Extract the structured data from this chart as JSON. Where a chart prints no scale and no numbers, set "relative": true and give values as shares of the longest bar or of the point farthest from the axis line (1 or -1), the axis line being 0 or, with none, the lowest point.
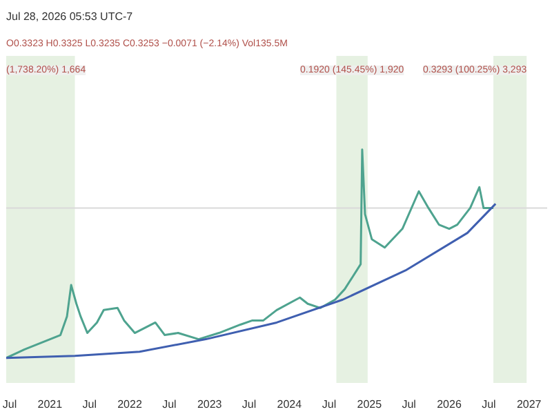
{
  "chart_data": {
    "type": "line",
    "relative": true,
    "title": "Jul 28, 2026 05:53 UTC-7",
    "subtitle": "O0.3323 H0.3325 L0.3235 C0.3253 −0.0071 (−2.14%) Vol135.5M",
    "x": [
      "2020-06-15",
      "2020-09-05",
      "2021-02-18",
      "2021-03-20",
      "2021-04-08",
      "2021-05-02",
      "2021-05-21",
      "2021-06-21",
      "2021-08-04",
      "2021-09-04",
      "2021-11-06",
      "2021-12-06",
      "2022-01-24",
      "2022-04-28",
      "2022-06-10",
      "2022-08-10",
      "2022-11-12",
      "2023-02-13",
      "2023-05-22",
      "2023-07-16",
      "2023-09-04",
      "2023-11-04",
      "2024-02-18",
      "2024-03-25",
      "2024-05-22",
      "2024-07-28",
      "2024-09-10",
      "2024-11-22",
      "2024-11-29",
      "2024-12-12",
      "2025-01-12",
      "2025-03-12",
      "2025-06-01",
      "2025-08-15",
      "2025-09-28",
      "2025-11-15",
      "2026-01-01",
      "2026-02-07",
      "2026-04-07",
      "2026-05-19",
      "2026-06-07",
      "2026-07-22"
    ],
    "series": [
      {
        "color": "#4ea38f",
        "values": [
          0,
          0.04,
          0.11,
          0.2,
          0.35,
          0.26,
          0.2,
          0.12,
          0.17,
          0.23,
          0.24,
          0.18,
          0.12,
          0.17,
          0.11,
          0.12,
          0.09,
          0.12,
          0.16,
          0.18,
          0.18,
          0.23,
          0.29,
          0.26,
          0.24,
          0.28,
          0.33,
          0.45,
          1,
          0.69,
          0.57,
          0.53,
          0.62,
          0.8,
          0.72,
          0.64,
          0.62,
          0.64,
          0.72,
          0.82,
          0.72,
          0.72
        ]
      },
      {
        "type": "line",
        "color": "#3f5fb0",
        "x": [
          "2020-06-15",
          "2021-04-25",
          "2022-02-15",
          "2022-12-15",
          "2023-11-04",
          "2024-09-01",
          "2025-06-15",
          "2026-03-25",
          "2026-08-01"
        ],
        "values": [
          0,
          0.01,
          0.03,
          0.09,
          0.17,
          0.28,
          0.42,
          0.6,
          0.74
        ]
      }
    ],
    "xlim": [
      "2020-06-15",
      "2027-03-25"
    ],
    "xticks": [
      {
        "value": "2020-07-01",
        "label": "Jul"
      },
      {
        "value": "2021-01-01",
        "label": "2021"
      },
      {
        "value": "2021-07-01",
        "label": "Jul"
      },
      {
        "value": "2022-01-01",
        "label": "2022"
      },
      {
        "value": "2022-07-01",
        "label": "Jul"
      },
      {
        "value": "2023-01-01",
        "label": "2023"
      },
      {
        "value": "2023-07-01",
        "label": "Jul"
      },
      {
        "value": "2024-01-01",
        "label": "2024"
      },
      {
        "value": "2024-07-01",
        "label": "Jul"
      },
      {
        "value": "2025-01-01",
        "label": "2025"
      },
      {
        "value": "2025-07-01",
        "label": "Jul"
      },
      {
        "value": "2026-01-01",
        "label": "2026"
      },
      {
        "value": "2026-07-01",
        "label": "Jul"
      },
      {
        "value": "2027-01-01",
        "label": "2027"
      }
    ],
    "bands": [
      {
        "axis": "x",
        "from": "2020-06-15",
        "to": "2021-04-25",
        "label": "(1,738.20%) 1,664",
        "color": "#dcebd6"
      },
      {
        "axis": "x",
        "from": "2024-08-03",
        "to": "2024-12-24",
        "label": "0.1920 (145.45%) 1,920",
        "color": "#dcebd6"
      },
      {
        "axis": "x",
        "from": "2026-07-22",
        "to": "2026-12-21",
        "label": "0.3293 (100.25%) 3,293",
        "color": "#dcebd6"
      }
    ],
    "ref_lines": [
      {
        "axis": "y",
        "value": 0.72,
        "color": "#d9d9d9"
      }
    ],
    "marker": "none",
    "line_style": "solid"
  }
}
